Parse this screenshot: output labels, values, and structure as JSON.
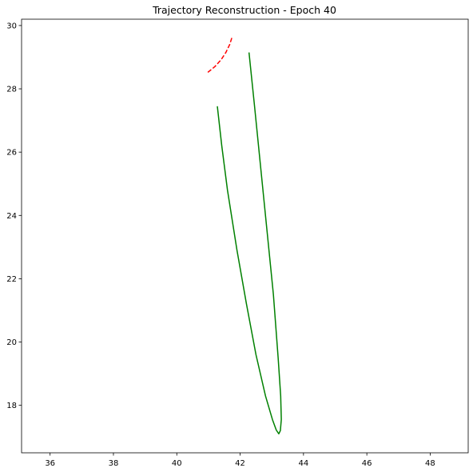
{
  "chart_data": {
    "type": "line",
    "title": "Trajectory Reconstruction - Epoch 40",
    "xlabel": "",
    "ylabel": "",
    "xlim": [
      35.1,
      49.2
    ],
    "ylim": [
      16.5,
      30.2
    ],
    "xticks": [
      36,
      38,
      40,
      42,
      44,
      46,
      48
    ],
    "yticks": [
      18,
      20,
      22,
      24,
      26,
      28,
      30
    ],
    "grid": false,
    "series": [
      {
        "color": "#008000",
        "style": "solid",
        "x": [
          42.28,
          42.45,
          42.65,
          42.85,
          43.05,
          43.2,
          43.28,
          43.3,
          43.27,
          43.22,
          43.14,
          43.02,
          42.8,
          42.5,
          42.2,
          41.9,
          41.6,
          41.42,
          41.28
        ],
        "y": [
          29.15,
          27.5,
          25.5,
          23.5,
          21.5,
          19.5,
          18.3,
          17.55,
          17.2,
          17.1,
          17.22,
          17.55,
          18.3,
          19.6,
          21.2,
          22.9,
          24.8,
          26.2,
          27.45
        ]
      },
      {
        "color": "#ff0000",
        "style": "dashed",
        "x": [
          40.98,
          41.2,
          41.4,
          41.55,
          41.67,
          41.75
        ],
        "y": [
          28.52,
          28.7,
          28.92,
          29.15,
          29.4,
          29.65
        ]
      }
    ]
  }
}
